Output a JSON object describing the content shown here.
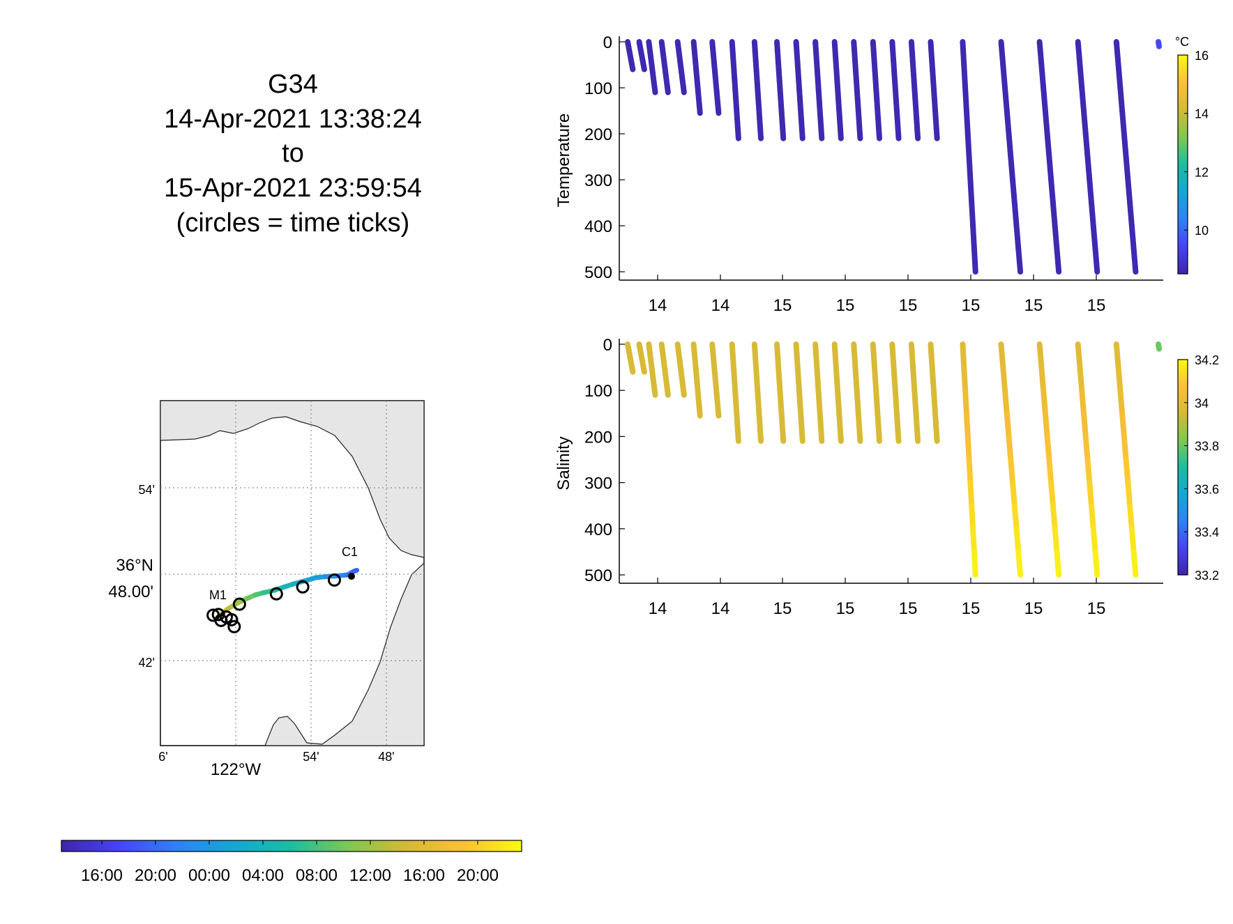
{
  "title": {
    "lines": [
      "G34",
      "14-Apr-2021 13:38:24",
      "to",
      "15-Apr-2021 23:59:54",
      "(circles = time ticks)"
    ]
  },
  "colormap": [
    "#3e26a8",
    "#4743f6",
    "#2f82f4",
    "#14a7d4",
    "#1cbda1",
    "#7ec951",
    "#d5b937",
    "#fcc036",
    "#f9f914"
  ],
  "map": {
    "lat_ticks": [
      "54'",
      "42'"
    ],
    "lat_main_label_lines": [
      "36°N",
      "48.00'"
    ],
    "lon_ticks": [
      "6'",
      "54'",
      "48'"
    ],
    "lon_main_label": "122°W",
    "station_labels": [
      "C1",
      "M1"
    ],
    "land_color": "#e6e6e6",
    "track_x": [
      0.22,
      0.25,
      0.28,
      0.31,
      0.33,
      0.36,
      0.39,
      0.43,
      0.47,
      0.51,
      0.55,
      0.59,
      0.63,
      0.67,
      0.71,
      0.73,
      0.75
    ],
    "track_y": [
      0.625,
      0.607,
      0.592,
      0.58,
      0.573,
      0.563,
      0.557,
      0.55,
      0.54,
      0.53,
      0.522,
      0.513,
      0.51,
      0.508,
      0.505,
      0.496,
      0.49
    ],
    "time_tick_x": [
      0.2,
      0.23,
      0.27,
      0.3,
      0.44,
      0.54,
      0.66,
      0.22,
      0.25,
      0.28
    ],
    "time_tick_y": [
      0.622,
      0.637,
      0.635,
      0.59,
      0.56,
      0.54,
      0.52,
      0.62,
      0.627,
      0.655
    ]
  },
  "time_colorbar": {
    "tick_labels": [
      "16:00",
      "20:00",
      "00:00",
      "04:00",
      "08:00",
      "12:00",
      "16:00",
      "20:00"
    ]
  },
  "chart_data": [
    {
      "type": "scatter",
      "title": "",
      "ylabel": "Temperature",
      "xlabel": "",
      "ylim": [
        0,
        500
      ],
      "y_reversed": true,
      "yticks": [
        0,
        100,
        200,
        300,
        400,
        500
      ],
      "xtick_labels": [
        "14",
        "14",
        "15",
        "15",
        "15",
        "15",
        "15",
        "15"
      ],
      "colorbar": {
        "label": "°C",
        "range": [
          8.5,
          16
        ],
        "ticks": [
          "10",
          "12",
          "14",
          "16"
        ]
      },
      "surface_value": 9.5,
      "deep_value": 8.6,
      "profiles": {
        "start": [
          0.0,
          0.18,
          0.33,
          0.53,
          0.78,
          1.03,
          1.32,
          1.63,
          1.98,
          2.33,
          2.63,
          2.93,
          3.23,
          3.53,
          3.83,
          4.13,
          4.43,
          4.73,
          5.23,
          5.83,
          6.43,
          7.03,
          7.63
        ],
        "end": [
          0.08,
          0.26,
          0.43,
          0.63,
          0.88,
          1.13,
          1.42,
          1.73,
          2.08,
          2.43,
          2.73,
          3.03,
          3.33,
          3.63,
          3.93,
          4.23,
          4.53,
          4.83,
          5.43,
          6.13,
          6.73,
          7.33,
          7.93
        ],
        "max_depth": [
          60,
          60,
          110,
          110,
          110,
          155,
          155,
          210,
          210,
          210,
          210,
          210,
          210,
          210,
          210,
          210,
          210,
          210,
          500,
          500,
          500,
          500,
          500
        ]
      }
    },
    {
      "type": "scatter",
      "title": "",
      "ylabel": "Salinity",
      "xlabel": "",
      "ylim": [
        0,
        500
      ],
      "y_reversed": true,
      "yticks": [
        0,
        100,
        200,
        300,
        400,
        500
      ],
      "xtick_labels": [
        "14",
        "14",
        "15",
        "15",
        "15",
        "15",
        "15",
        "15"
      ],
      "colorbar": {
        "label": "",
        "range": [
          33.2,
          34.2
        ],
        "ticks": [
          "33.2",
          "33.4",
          "33.6",
          "33.8",
          "34",
          "34.2"
        ]
      },
      "surface_value": 33.8,
      "mid_value": 33.96,
      "deep_value": 34.18,
      "profiles": {
        "start": [
          0.0,
          0.18,
          0.33,
          0.53,
          0.78,
          1.03,
          1.32,
          1.63,
          1.98,
          2.33,
          2.63,
          2.93,
          3.23,
          3.53,
          3.83,
          4.13,
          4.43,
          4.73,
          5.23,
          5.83,
          6.43,
          7.03,
          7.63
        ],
        "end": [
          0.08,
          0.26,
          0.43,
          0.63,
          0.88,
          1.13,
          1.42,
          1.73,
          2.08,
          2.43,
          2.73,
          3.03,
          3.33,
          3.63,
          3.93,
          4.23,
          4.53,
          4.83,
          5.43,
          6.13,
          6.73,
          7.33,
          7.93
        ],
        "max_depth": [
          60,
          60,
          110,
          110,
          110,
          155,
          155,
          210,
          210,
          210,
          210,
          210,
          210,
          210,
          210,
          210,
          210,
          210,
          500,
          500,
          500,
          500,
          500
        ]
      }
    }
  ]
}
